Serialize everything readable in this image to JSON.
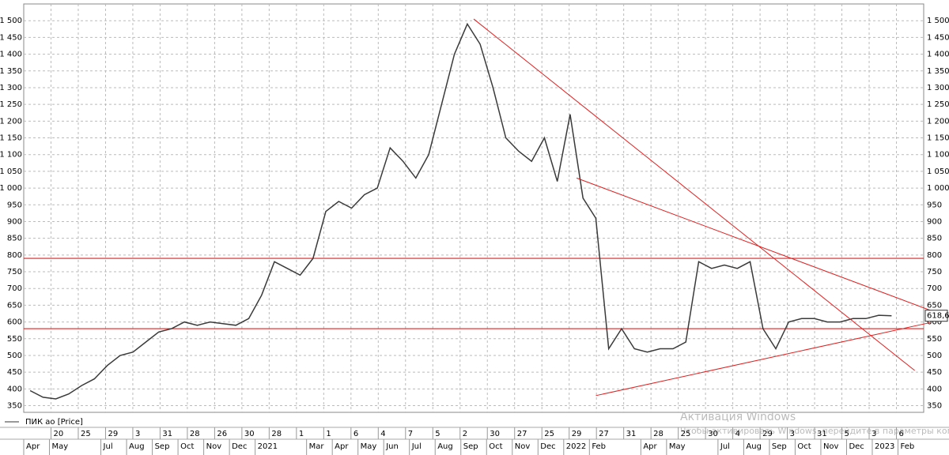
{
  "chart_data": {
    "type": "line",
    "series": [
      {
        "name": "ПИК ао [Price]",
        "color": "#3a3a3a",
        "values": [
          395,
          375,
          370,
          385,
          410,
          430,
          470,
          500,
          510,
          540,
          570,
          580,
          600,
          590,
          600,
          595,
          590,
          610,
          680,
          780,
          760,
          740,
          790,
          930,
          960,
          940,
          980,
          1000,
          1120,
          1080,
          1030,
          1100,
          1250,
          1400,
          1490,
          1430,
          1300,
          1150,
          1110,
          1080,
          1150,
          1020,
          1220,
          970,
          910,
          520,
          580,
          520,
          510,
          520,
          520,
          540,
          780,
          760,
          770,
          760,
          780,
          580,
          520,
          600,
          610,
          610,
          600,
          600,
          610,
          610,
          620,
          618.6,
          null,
          null
        ]
      }
    ],
    "categories": [
      "Apr",
      null,
      "May",
      null,
      null,
      null,
      "Jul",
      null,
      "Aug",
      null,
      "Sep",
      null,
      "Oct",
      null,
      "Nov",
      null,
      "Dec",
      null,
      "2021",
      null,
      null,
      null,
      "Mar",
      null,
      "Apr",
      null,
      "May",
      null,
      "Jun",
      null,
      "Jul",
      null,
      "Aug",
      null,
      "Sep",
      null,
      "Oct",
      null,
      "Nov",
      null,
      "Dec",
      null,
      "2022",
      null,
      "Feb",
      null,
      null,
      null,
      "Apr",
      null,
      "May",
      null,
      null,
      null,
      "Jul",
      null,
      "Aug",
      null,
      "Sep",
      null,
      "Oct",
      null,
      "Nov",
      null,
      "Dec",
      null,
      "2023",
      null,
      "Feb",
      null
    ],
    "x_day_labels": [
      "20",
      "25",
      "29",
      "3",
      "31",
      "28",
      "26",
      "30",
      "28",
      "1",
      "1",
      "6",
      "4",
      "7",
      "5",
      "2",
      "30",
      "27",
      "25",
      "29",
      "27",
      "31",
      "28",
      "25",
      "30",
      "4",
      "29",
      "3",
      "31",
      "5",
      "3",
      "6"
    ],
    "ylim": [
      330,
      1550
    ],
    "yticks": [
      350,
      400,
      450,
      500,
      550,
      600,
      650,
      700,
      750,
      800,
      850,
      900,
      950,
      {
        "value": 1000,
        "label": "1 000"
      },
      {
        "value": 1050,
        "label": "1 050"
      },
      {
        "value": 1100,
        "label": "1 100"
      },
      {
        "value": 1150,
        "label": "1 150"
      },
      {
        "value": 1200,
        "label": "1 200"
      },
      {
        "value": 1250,
        "label": "1 250"
      },
      {
        "value": 1300,
        "label": "1 300"
      },
      {
        "value": 1350,
        "label": "1 350"
      },
      {
        "value": 1400,
        "label": "1 400"
      },
      {
        "value": 1450,
        "label": "1 450"
      },
      {
        "value": 1500,
        "label": "1 500"
      }
    ],
    "grid": true,
    "last_price": {
      "value": 618.6,
      "label": "618,6"
    },
    "hlines": {
      "color": "#e02020",
      "values": [
        790,
        580
      ]
    },
    "trend_lines": {
      "color": "#e02020",
      "lines": [
        [
          [
            34.5,
            1505
          ],
          [
            68.8,
            455
          ]
        ],
        [
          [
            42.5,
            1030
          ],
          [
            70,
            635
          ]
        ],
        [
          [
            44,
            380
          ],
          [
            70,
            598
          ]
        ]
      ]
    },
    "watermark": [
      "Активация Windows",
      "Чтобы активировать Windows, перейдите в параметры компьютера."
    ]
  }
}
